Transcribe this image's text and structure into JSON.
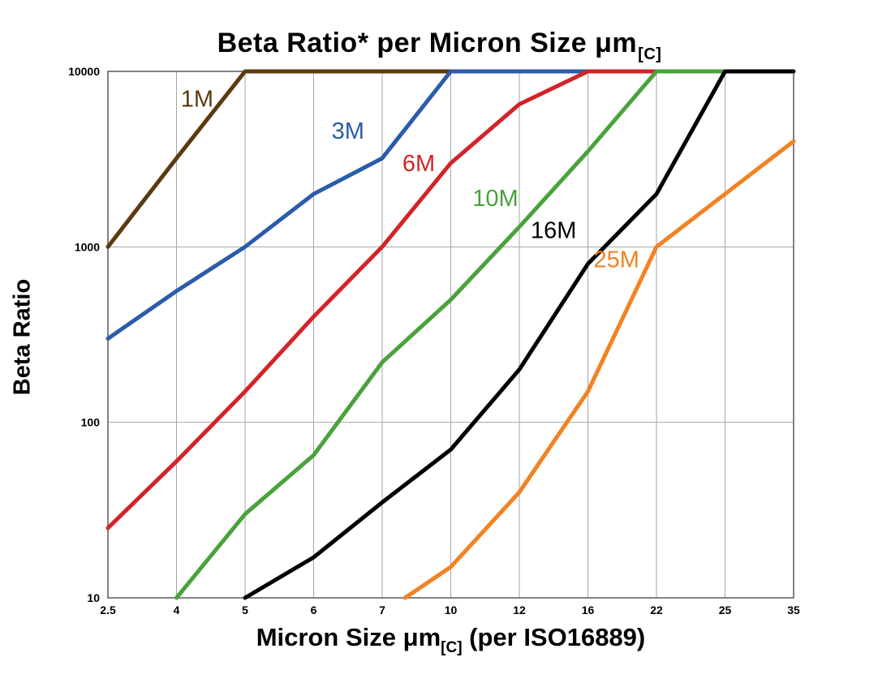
{
  "page": {
    "background": "#ffffff"
  },
  "chart_data": {
    "type": "line",
    "title": "Beta Ratio* per Micron Size μm[C]",
    "title_parts": {
      "main": "Beta Ratio* per Micron Size μm",
      "sub": "[C]"
    },
    "xlabel": "Micron Size μm[C] (per ISO16889)",
    "xlabel_parts": {
      "pre": "Micron Size μm",
      "sub": "[C]",
      "post": " (per ISO16889)"
    },
    "ylabel": "Beta Ratio",
    "x_scale": "category",
    "y_scale": "log",
    "categories": [
      "2.5",
      "4",
      "5",
      "6",
      "7",
      "10",
      "12",
      "16",
      "22",
      "25",
      "35"
    ],
    "category_values": [
      2.5,
      4,
      5,
      6,
      7,
      10,
      12,
      16,
      22,
      25,
      35
    ],
    "y_ticks": [
      10,
      100,
      1000,
      10000
    ],
    "ylim": [
      10,
      10000
    ],
    "grid": true,
    "grid_color": "#a6a6a6",
    "border_color": "#595959",
    "series": [
      {
        "name": "1M",
        "color": "#5b3a10",
        "points": [
          [
            2.5,
            1000
          ],
          [
            4,
            3200
          ],
          [
            5,
            10000
          ],
          [
            10,
            10000
          ]
        ]
      },
      {
        "name": "3M",
        "color": "#2a5caa",
        "points": [
          [
            2.5,
            300
          ],
          [
            4,
            560
          ],
          [
            5,
            1000
          ],
          [
            6,
            2000
          ],
          [
            7,
            3200
          ],
          [
            10,
            10000
          ],
          [
            16,
            10000
          ]
        ]
      },
      {
        "name": "6M",
        "color": "#d22428",
        "points": [
          [
            2.5,
            25
          ],
          [
            4,
            60
          ],
          [
            5,
            150
          ],
          [
            6,
            400
          ],
          [
            7,
            1000
          ],
          [
            10,
            3000
          ],
          [
            12,
            6500
          ],
          [
            16,
            10000
          ],
          [
            22,
            10000
          ]
        ]
      },
      {
        "name": "10M",
        "color": "#4aa23c",
        "points": [
          [
            4,
            10
          ],
          [
            5,
            30
          ],
          [
            6,
            65
          ],
          [
            7,
            220
          ],
          [
            10,
            500
          ],
          [
            12,
            1300
          ],
          [
            16,
            3500
          ],
          [
            22,
            10000
          ],
          [
            25,
            10000
          ]
        ]
      },
      {
        "name": "16M",
        "color": "#000000",
        "points": [
          [
            5,
            10
          ],
          [
            6,
            17
          ],
          [
            7,
            35
          ],
          [
            10,
            70
          ],
          [
            12,
            200
          ],
          [
            16,
            800
          ],
          [
            22,
            2000
          ],
          [
            25,
            10000
          ],
          [
            35,
            10000
          ]
        ]
      },
      {
        "name": "25M",
        "color": "#f28222",
        "points": [
          [
            8,
            10
          ],
          [
            10,
            15
          ],
          [
            12,
            40
          ],
          [
            16,
            150
          ],
          [
            22,
            1000
          ],
          [
            25,
            2000
          ],
          [
            35,
            4000
          ]
        ]
      }
    ],
    "annotations": [
      {
        "text": "1M",
        "x": 4.3,
        "y": 7000,
        "color": "#5b3a10"
      },
      {
        "text": "3M",
        "x": 6.5,
        "y": 4600,
        "color": "#2a5caa"
      },
      {
        "text": "6M",
        "x": 8.6,
        "y": 3000,
        "color": "#d22428"
      },
      {
        "text": "10M",
        "x": 11.3,
        "y": 1900,
        "color": "#4aa23c"
      },
      {
        "text": "16M",
        "x": 14.0,
        "y": 1250,
        "color": "#000000"
      },
      {
        "text": "25M",
        "x": 18.5,
        "y": 850,
        "color": "#f28222"
      }
    ],
    "legend": "none (inline series labels)"
  }
}
